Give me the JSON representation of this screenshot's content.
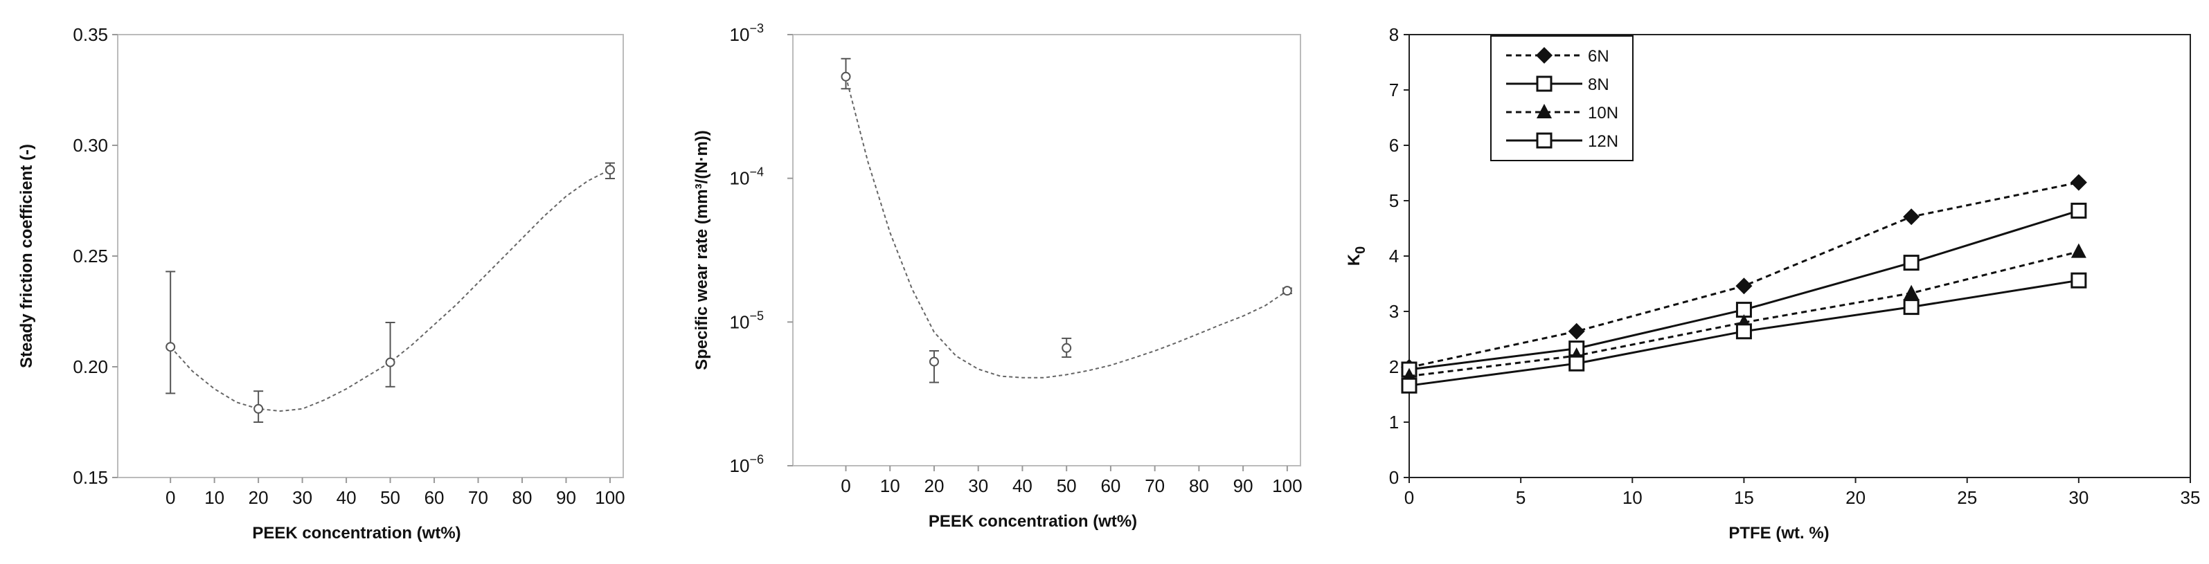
{
  "chart_data": [
    {
      "type": "scatter",
      "title": "",
      "xlabel": "PEEK concentration (wt%)",
      "ylabel": "Steady friction coefficient (-)",
      "xlim": [
        -12,
        103
      ],
      "ylim": [
        0.15,
        0.35
      ],
      "xticks": [
        0,
        10,
        20,
        30,
        40,
        50,
        60,
        70,
        80,
        90,
        100
      ],
      "yticks": [
        0.15,
        0.2,
        0.25,
        0.3,
        0.35
      ],
      "yticklabels": [
        "0.15",
        "0.20",
        "0.25",
        "0.30",
        "0.35"
      ],
      "points": [
        {
          "x": 0,
          "y": 0.209,
          "err_low": 0.188,
          "err_high": 0.243
        },
        {
          "x": 20,
          "y": 0.181,
          "err_low": 0.175,
          "err_high": 0.189
        },
        {
          "x": 50,
          "y": 0.202,
          "err_low": 0.191,
          "err_high": 0.22
        },
        {
          "x": 100,
          "y": 0.289,
          "err_low": 0.285,
          "err_high": 0.292
        }
      ],
      "trend": {
        "x": [
          0,
          5,
          10,
          15,
          20,
          25,
          30,
          35,
          40,
          45,
          50,
          55,
          60,
          65,
          70,
          75,
          80,
          85,
          90,
          95,
          100
        ],
        "y": [
          0.209,
          0.198,
          0.19,
          0.184,
          0.181,
          0.18,
          0.181,
          0.185,
          0.19,
          0.196,
          0.202,
          0.21,
          0.219,
          0.228,
          0.238,
          0.248,
          0.258,
          0.268,
          0.277,
          0.284,
          0.289
        ]
      },
      "grid": false,
      "frame_color": "#bbbbbb",
      "point_color": "#555555",
      "trend_color": "#666666"
    },
    {
      "type": "scatter",
      "title": "",
      "xlabel": "PEEK concentration (wt%)",
      "ylabel": "Specific wear rate (mm³/(N·m))",
      "yscale": "log",
      "xlim": [
        -12,
        103
      ],
      "ylim": [
        1e-06,
        0.001
      ],
      "xticks": [
        0,
        10,
        20,
        30,
        40,
        50,
        60,
        70,
        80,
        90,
        100
      ],
      "yticks": [
        1e-06,
        1e-05,
        0.0001,
        0.001
      ],
      "yticklabels": [
        {
          "base": "10",
          "exp": "−6"
        },
        {
          "base": "10",
          "exp": "−5"
        },
        {
          "base": "10",
          "exp": "−4"
        },
        {
          "base": "10",
          "exp": "−3"
        }
      ],
      "points": [
        {
          "x": 0,
          "y": 0.00051,
          "err_low": 0.00042,
          "err_high": 0.00068
        },
        {
          "x": 20,
          "y": 5.3e-06,
          "err_low": 3.8e-06,
          "err_high": 6.3e-06
        },
        {
          "x": 50,
          "y": 6.6e-06,
          "err_low": 5.7e-06,
          "err_high": 7.7e-06
        },
        {
          "x": 100,
          "y": 1.65e-05,
          "err_low": 1.58e-05,
          "err_high": 1.72e-05
        }
      ],
      "trend": {
        "x": [
          0,
          5,
          10,
          15,
          20,
          25,
          30,
          35,
          40,
          45,
          50,
          55,
          60,
          65,
          70,
          75,
          80,
          85,
          90,
          95,
          100
        ],
        "y": [
          0.00051,
          0.00013,
          4.2e-05,
          1.7e-05,
          8.5e-06,
          5.8e-06,
          4.7e-06,
          4.2e-06,
          4.1e-06,
          4.1e-06,
          4.3e-06,
          4.6e-06,
          5e-06,
          5.6e-06,
          6.3e-06,
          7.2e-06,
          8.3e-06,
          9.6e-06,
          1.1e-05,
          1.3e-05,
          1.65e-05
        ]
      },
      "grid": false,
      "frame_color": "#bbbbbb",
      "point_color": "#555555",
      "trend_color": "#666666"
    },
    {
      "type": "line",
      "title": "",
      "xlabel": "PTFE (wt. %)",
      "ylabel": "K",
      "ylabel_sub": "0",
      "xlim": [
        0,
        35
      ],
      "ylim": [
        0,
        8
      ],
      "xticks": [
        0,
        5,
        10,
        15,
        20,
        25,
        30,
        35
      ],
      "yticks": [
        0,
        1,
        2,
        3,
        4,
        5,
        6,
        7,
        8
      ],
      "x": [
        0,
        7.5,
        15,
        22.5,
        30
      ],
      "series": [
        {
          "name": "6N",
          "values": [
            1.99,
            2.64,
            3.46,
            4.71,
            5.33
          ],
          "marker": "diamond-filled",
          "dash": true
        },
        {
          "name": "8N",
          "values": [
            1.95,
            2.33,
            3.03,
            3.88,
            4.82
          ],
          "marker": "square-open",
          "dash": false
        },
        {
          "name": "10N",
          "values": [
            1.83,
            2.2,
            2.8,
            3.33,
            4.08
          ],
          "marker": "triangle-filled",
          "dash": true
        },
        {
          "name": "12N",
          "values": [
            1.66,
            2.06,
            2.64,
            3.08,
            3.56
          ],
          "marker": "square-open",
          "dash": false
        }
      ],
      "legend_position": "top-left",
      "grid": false,
      "frame_color": "#222222",
      "series_color": "#111111"
    }
  ]
}
